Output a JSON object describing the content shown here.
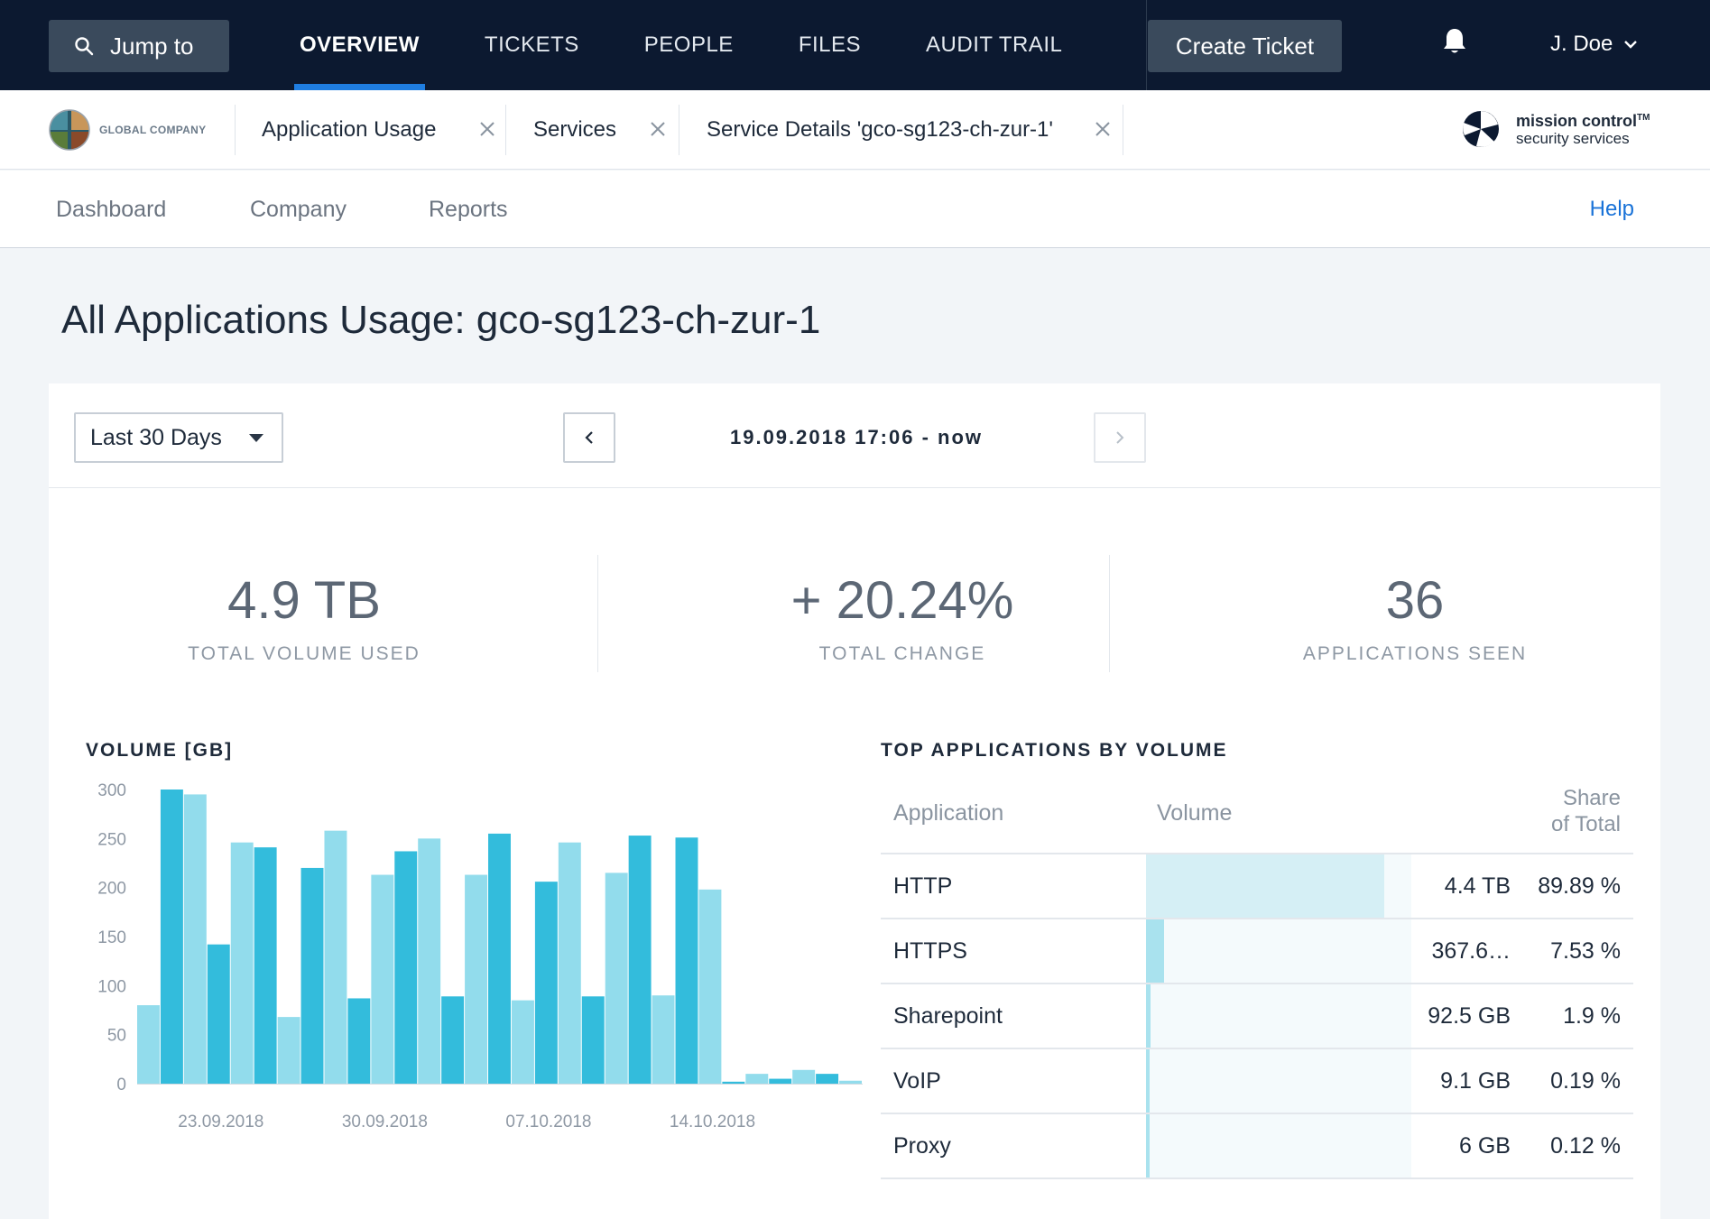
{
  "topbar": {
    "jump_label": "Jump to",
    "nav": [
      {
        "label": "OVERVIEW",
        "active": true
      },
      {
        "label": "TICKETS",
        "active": false
      },
      {
        "label": "PEOPLE",
        "active": false
      },
      {
        "label": "FILES",
        "active": false
      },
      {
        "label": "AUDIT TRAIL",
        "active": false
      }
    ],
    "create_label": "Create Ticket",
    "user_name": "J. Doe"
  },
  "tabbar": {
    "company_name": "GLOBAL COMPANY",
    "tabs": [
      {
        "label": "Application Usage"
      },
      {
        "label": "Services"
      },
      {
        "label": "Service Details 'gco-sg123-ch-zur-1'"
      }
    ],
    "brand_line1": "mission control",
    "brand_tm": "TM",
    "brand_line2": "security services"
  },
  "subnav": {
    "items": [
      "Dashboard",
      "Company",
      "Reports"
    ],
    "help": "Help"
  },
  "page": {
    "title": "All Applications Usage: gco-sg123-ch-zur-1"
  },
  "filter": {
    "range_selected": "Last 30 Days",
    "date_range": "19.09.2018 17:06 - now"
  },
  "kpis": [
    {
      "value": "4.9 TB",
      "label": "TOTAL VOLUME USED"
    },
    {
      "value": "+ 20.24%",
      "label": "TOTAL CHANGE"
    },
    {
      "value": "36",
      "label": "APPLICATIONS SEEN"
    }
  ],
  "volume_section": {
    "title": "VOLUME [GB]"
  },
  "top_apps": {
    "title": "TOP APPLICATIONS BY VOLUME",
    "headers": {
      "application": "Application",
      "volume": "Volume",
      "share_line1": "Share",
      "share_line2": "of Total"
    },
    "rows": [
      {
        "app": "HTTP",
        "volume": "4.4 TB",
        "share": "89.89 %",
        "fraction": 0.8989
      },
      {
        "app": "HTTPS",
        "volume": "367.6…",
        "share": "7.53 %",
        "fraction": 0.0753
      },
      {
        "app": "Sharepoint",
        "volume": "92.5 GB",
        "share": "1.9 %",
        "fraction": 0.019
      },
      {
        "app": "VoIP",
        "volume": "9.1 GB",
        "share": "0.19 %",
        "fraction": 0.0019
      },
      {
        "app": "Proxy",
        "volume": "6 GB",
        "share": "0.12 %",
        "fraction": 0.0012
      }
    ]
  },
  "colors": {
    "topbar_bg": "#0c1930",
    "accent_blue": "#1f7de0",
    "bar_dark": "#33bcdc",
    "bar_light": "#92dcec"
  },
  "chart_data": {
    "type": "bar",
    "title": "VOLUME [GB]",
    "ylim": [
      0,
      300
    ],
    "yticks": [
      0,
      50,
      100,
      150,
      200,
      250,
      300
    ],
    "xtick_labels": [
      "23.09.2018",
      "30.09.2018",
      "07.10.2018",
      "14.10.2018"
    ],
    "values": [
      80,
      300,
      295,
      142,
      246,
      241,
      68,
      220,
      258,
      87,
      213,
      237,
      250,
      89,
      213,
      255,
      85,
      206,
      246,
      89,
      215,
      253,
      90,
      251,
      198,
      2,
      10,
      5,
      14,
      10,
      3
    ]
  }
}
